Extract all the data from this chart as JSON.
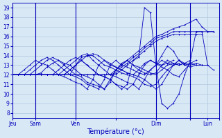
{
  "title": "Température (°c)",
  "ylabel_ticks": [
    8,
    9,
    10,
    11,
    12,
    13,
    14,
    15,
    16,
    17,
    18,
    19
  ],
  "ylim": [
    7.5,
    19.5
  ],
  "background_color": "#d8e8f5",
  "plot_bg_color": "#d8e8f5",
  "grid_color": "#b0c8e0",
  "line_color": "#0000bb",
  "xlim": [
    0,
    180
  ],
  "x_ticks": [
    0,
    20,
    55,
    90,
    125,
    155,
    170,
    180
  ],
  "x_labels": [
    "Jeu",
    "Sam",
    "Ven",
    "",
    "Dim",
    "",
    "Lun",
    ""
  ],
  "series_x_end": 175,
  "series": [
    {
      "x": [
        0,
        5,
        10,
        15,
        20,
        25,
        30,
        35,
        40,
        45,
        50,
        55,
        60,
        65,
        70,
        75,
        80,
        85,
        90,
        95,
        100,
        105,
        110,
        115,
        120,
        125,
        130,
        135,
        140,
        145,
        150,
        155,
        160,
        165,
        170,
        175
      ],
      "y": [
        12,
        12,
        12,
        12,
        12,
        12,
        12,
        12,
        12,
        12,
        12,
        12,
        12,
        12,
        12,
        12,
        12,
        12,
        12.5,
        13,
        13.5,
        14,
        14.5,
        15,
        15.5,
        16,
        16.2,
        16.5,
        16.8,
        17,
        17.2,
        17.5,
        17.8,
        17,
        16.5,
        16.5
      ]
    },
    {
      "x": [
        0,
        5,
        10,
        15,
        20,
        25,
        30,
        35,
        40,
        45,
        50,
        55,
        60,
        65,
        70,
        75,
        80,
        85,
        90,
        95,
        100,
        105,
        110,
        115,
        120,
        125,
        130,
        135,
        140,
        145,
        150,
        155,
        160,
        165,
        170,
        175
      ],
      "y": [
        12,
        12,
        12,
        12,
        12,
        12,
        12,
        12,
        12,
        12,
        12,
        12,
        12,
        12,
        12,
        12,
        12,
        12,
        12.2,
        12.8,
        13.2,
        13.8,
        14.2,
        14.8,
        15.2,
        15.8,
        16,
        16.2,
        16.5,
        16.5,
        16.5,
        16.5,
        16.5,
        16.5,
        16.5,
        16.5
      ]
    },
    {
      "x": [
        0,
        5,
        10,
        15,
        20,
        25,
        30,
        35,
        40,
        45,
        50,
        55,
        60,
        65,
        70,
        75,
        80,
        85,
        90,
        95,
        100,
        105,
        110,
        115,
        120,
        125,
        130,
        135,
        140,
        145,
        150,
        155,
        160,
        165
      ],
      "y": [
        12,
        12,
        12,
        12,
        12,
        12,
        12,
        12,
        12,
        12,
        12,
        12,
        12,
        12,
        12,
        12,
        12,
        12,
        12,
        12.5,
        13,
        13.5,
        14,
        14.5,
        15,
        15.5,
        15.8,
        16,
        16.2,
        16.2,
        16.2,
        16.2,
        16.2,
        16.2
      ]
    },
    {
      "x": [
        0,
        5,
        10,
        15,
        20,
        25,
        30,
        35,
        40,
        45,
        50,
        55,
        60,
        65,
        70,
        75,
        80,
        85,
        90,
        95,
        100,
        105,
        110,
        115,
        120,
        125,
        130,
        135,
        140,
        145,
        150,
        155,
        160,
        165,
        170
      ],
      "y": [
        12,
        12,
        12,
        12,
        12,
        12,
        12,
        12,
        12,
        12,
        12.5,
        13,
        13.5,
        14,
        14.2,
        14,
        13.5,
        13,
        12.8,
        12.5,
        12.2,
        12,
        11.8,
        11.5,
        11,
        10.5,
        11,
        12,
        13,
        13.5,
        13.2,
        13,
        13.2,
        13,
        13
      ]
    },
    {
      "x": [
        0,
        5,
        10,
        15,
        20,
        25,
        30,
        35,
        40,
        45,
        50,
        55,
        60,
        65,
        70,
        75,
        80,
        85,
        90,
        95,
        100,
        105,
        110,
        115,
        120,
        125,
        130,
        135,
        140,
        145,
        150,
        155,
        160,
        165,
        170
      ],
      "y": [
        12,
        12,
        12,
        12,
        12,
        12,
        12,
        12,
        12,
        12,
        12.5,
        13,
        13.8,
        14,
        14,
        13.5,
        13,
        12.8,
        12.5,
        12.2,
        12,
        11.8,
        11.5,
        11,
        10.8,
        11,
        11.8,
        12.5,
        13,
        13.5,
        13,
        12.8,
        13,
        13,
        13
      ]
    },
    {
      "x": [
        0,
        5,
        10,
        15,
        20,
        25,
        30,
        35,
        40,
        45,
        50,
        55,
        60,
        65,
        70,
        75,
        80,
        85,
        90,
        95,
        100,
        105,
        110,
        115,
        120,
        125,
        130,
        135,
        140,
        145,
        150,
        155,
        160,
        165
      ],
      "y": [
        12,
        12,
        12,
        12,
        12,
        12,
        12,
        12,
        12,
        12.5,
        13,
        13.5,
        14,
        14.2,
        13.5,
        13,
        12.5,
        12,
        11.8,
        11.5,
        11.2,
        11,
        10.5,
        11.5,
        12.5,
        13,
        14,
        15,
        14.5,
        13.5,
        13,
        13.2,
        13,
        13
      ]
    },
    {
      "x": [
        0,
        5,
        10,
        15,
        20,
        25,
        30,
        35,
        40,
        45,
        50,
        55,
        60,
        65,
        70,
        75,
        80,
        85,
        90,
        95,
        100,
        105,
        110,
        115,
        120,
        125,
        130,
        135,
        140,
        145,
        150,
        155,
        160
      ],
      "y": [
        12,
        12,
        12,
        12,
        12,
        12,
        12,
        12,
        12.5,
        13,
        13.5,
        13.8,
        13.5,
        13,
        12.5,
        12,
        11.8,
        11.5,
        11,
        10.8,
        10.5,
        11,
        12,
        13,
        13.5,
        13.2,
        12.8,
        12.5,
        12,
        11.8,
        12.5,
        13.2,
        13.5
      ]
    },
    {
      "x": [
        0,
        5,
        10,
        15,
        20,
        25,
        30,
        35,
        40,
        45,
        50,
        55,
        60,
        65,
        70,
        75,
        80,
        85,
        90,
        95,
        100,
        105,
        110,
        115,
        120,
        125,
        130,
        135,
        140,
        145,
        150,
        155
      ],
      "y": [
        12,
        12,
        12,
        12,
        12,
        12.2,
        12.8,
        13.2,
        13.5,
        13.2,
        13,
        12.5,
        12,
        11.8,
        11.5,
        11,
        10.5,
        11.2,
        12.5,
        13.2,
        13.5,
        13,
        12.8,
        12.5,
        12.2,
        12,
        12.5,
        13,
        13.2,
        13,
        13.2,
        13.5
      ]
    },
    {
      "x": [
        0,
        5,
        10,
        15,
        20,
        25,
        30,
        35,
        40,
        45,
        50,
        55,
        60,
        65,
        70,
        75,
        80,
        85,
        90,
        95,
        100,
        105,
        110,
        115,
        120,
        125,
        130,
        135,
        140,
        145,
        150
      ],
      "y": [
        12,
        12,
        12,
        12,
        12.5,
        13,
        13.5,
        13.8,
        13.5,
        13,
        12.5,
        12,
        11.8,
        11.2,
        11,
        10.8,
        10.5,
        11.5,
        12.5,
        13,
        13.5,
        13,
        12.5,
        12.2,
        12,
        12.2,
        13,
        13.5,
        13.2,
        13,
        13.2
      ]
    },
    {
      "x": [
        0,
        5,
        10,
        15,
        20,
        25,
        30,
        35,
        40,
        45,
        50,
        55,
        60,
        65,
        70,
        75,
        80,
        85,
        90,
        95,
        100,
        105,
        110,
        115,
        120,
        125,
        130,
        135,
        140,
        145
      ],
      "y": [
        12,
        12,
        12,
        12.5,
        13,
        13.5,
        13.8,
        13.5,
        13,
        12.5,
        12,
        11.8,
        11.5,
        11,
        10.8,
        10.5,
        11.5,
        13,
        13.5,
        13,
        12.8,
        12.5,
        12.2,
        12,
        12.5,
        13,
        13.5,
        13.2,
        13,
        13.2
      ]
    },
    {
      "x": [
        0,
        5,
        10,
        15,
        20,
        25,
        30,
        35,
        40,
        45,
        50,
        55,
        60,
        65,
        70,
        75,
        80,
        85,
        90,
        95,
        100,
        105,
        110,
        115,
        120,
        125,
        130,
        135,
        140
      ],
      "y": [
        12,
        12,
        12.5,
        13,
        13.5,
        13.2,
        13,
        12.5,
        12,
        11.8,
        11.5,
        11.2,
        11,
        10.5,
        11.5,
        13,
        13.5,
        13.2,
        12.8,
        12.5,
        12.2,
        12,
        12.5,
        13.2,
        13.5,
        13.2,
        13,
        13.2,
        13.5
      ]
    },
    {
      "x": [
        0,
        5,
        10,
        15,
        20,
        25,
        30,
        35,
        40,
        45,
        50,
        55,
        60,
        65,
        70,
        75,
        80,
        85,
        90,
        95,
        100,
        105,
        110,
        115,
        120,
        125,
        130,
        135,
        140,
        145,
        150,
        155,
        160,
        165,
        170,
        175
      ],
      "y": [
        12,
        12,
        12,
        12,
        12,
        12,
        12,
        12,
        12,
        12,
        12,
        13,
        13.5,
        13,
        12.5,
        12,
        11.8,
        11.5,
        11,
        10.5,
        11,
        13.5,
        13.8,
        19,
        18.5,
        13,
        9,
        8.5,
        9,
        10,
        12,
        13.5,
        16.5,
        16.5,
        13,
        12.5
      ]
    }
  ]
}
